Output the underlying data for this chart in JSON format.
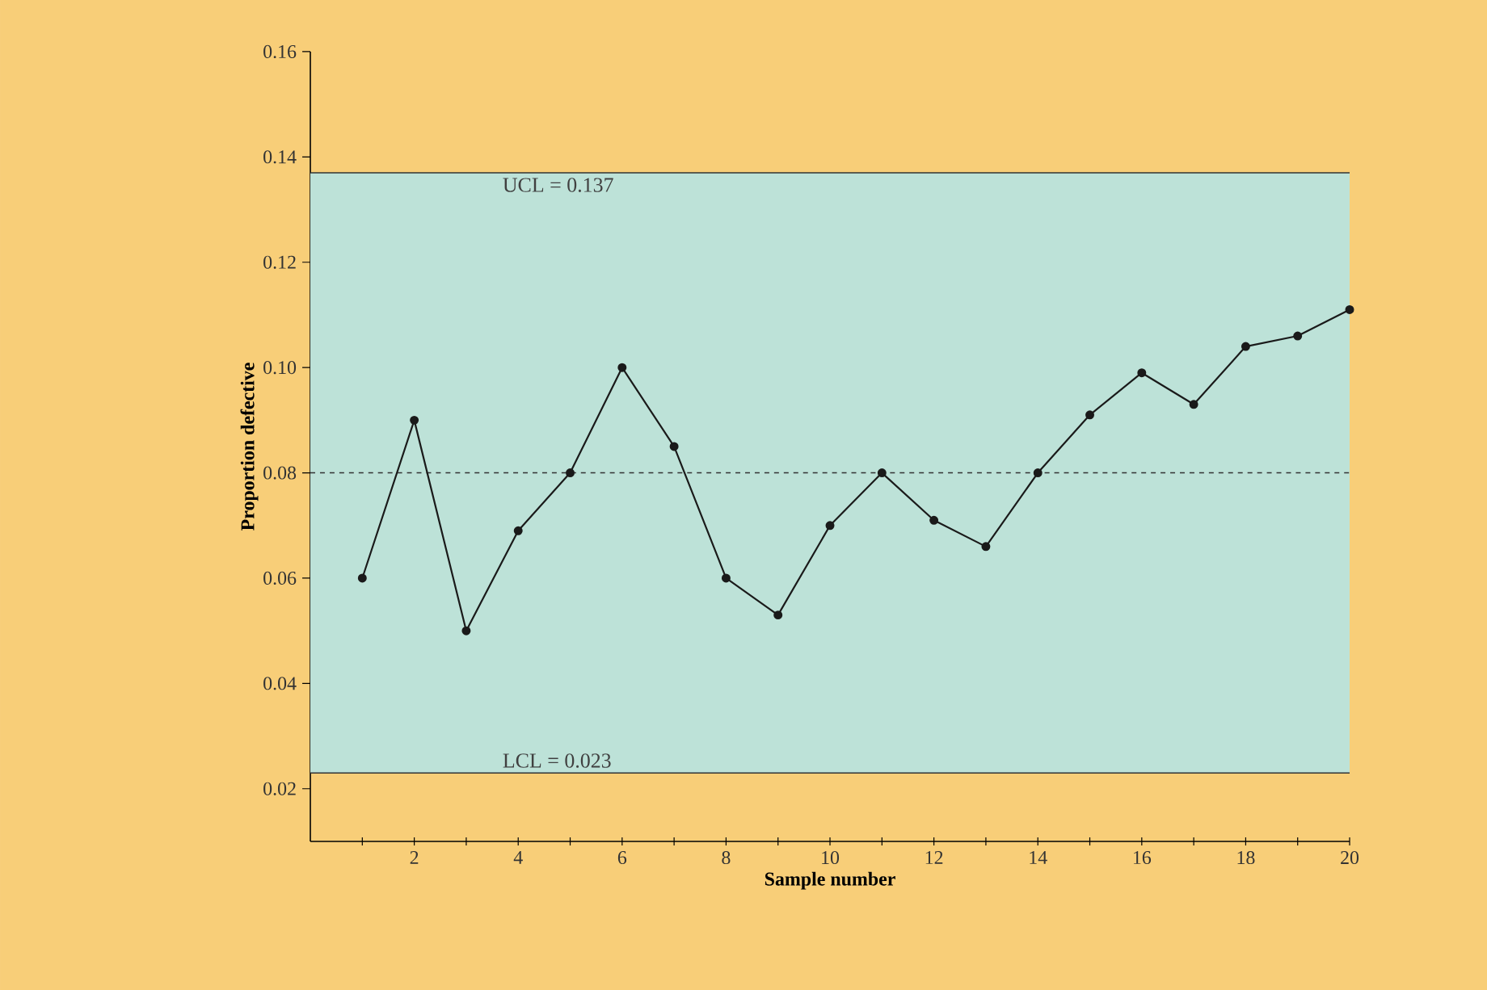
{
  "chart_data": {
    "type": "line",
    "xlabel": "Sample number",
    "ylabel": "Proportion defective",
    "x": [
      1,
      2,
      3,
      4,
      5,
      6,
      7,
      8,
      9,
      10,
      11,
      12,
      13,
      14,
      15,
      16,
      17,
      18,
      19,
      20
    ],
    "series": [
      {
        "color": "#1a1a1a",
        "values": [
          0.06,
          0.09,
          0.05,
          0.069,
          0.08,
          0.1,
          0.085,
          0.06,
          0.053,
          0.07,
          0.08,
          0.071,
          0.066,
          0.08,
          0.091,
          0.099,
          0.093,
          0.104,
          0.106,
          0.111
        ]
      }
    ],
    "xlim": [
      0,
      20
    ],
    "xticks": [
      {
        "value": 1,
        "label": null
      },
      2,
      {
        "value": 3,
        "label": null
      },
      4,
      {
        "value": 5,
        "label": null
      },
      6,
      {
        "value": 7,
        "label": null
      },
      8,
      {
        "value": 9,
        "label": null
      },
      10,
      {
        "value": 11,
        "label": null
      },
      12,
      {
        "value": 13,
        "label": null
      },
      14,
      {
        "value": 15,
        "label": null
      },
      16,
      {
        "value": 17,
        "label": null
      },
      18,
      {
        "value": 19,
        "label": null
      },
      20
    ],
    "ylim": [
      0.01,
      0.16
    ],
    "yticks": [
      0.02,
      0.04,
      0.06,
      0.08,
      {
        "value": 0.1,
        "label": "0.10"
      },
      0.12,
      0.14,
      0.16
    ],
    "bands": [
      {
        "axis": "y",
        "from": 0.023,
        "to": 0.137,
        "color": "#bde2d8"
      }
    ],
    "ref_lines": [
      {
        "axis": "y",
        "value": 0.137,
        "label": "UCL = 0.137",
        "color": "#333333",
        "line_style": "solid"
      },
      {
        "axis": "y",
        "value": 0.023,
        "label": "LCL = 0.023",
        "color": "#333333",
        "line_style": "solid"
      },
      {
        "axis": "y",
        "value": 0.08,
        "color": "#333333",
        "line_style": "dashed"
      }
    ],
    "marker": "circle",
    "line_style": "solid"
  }
}
